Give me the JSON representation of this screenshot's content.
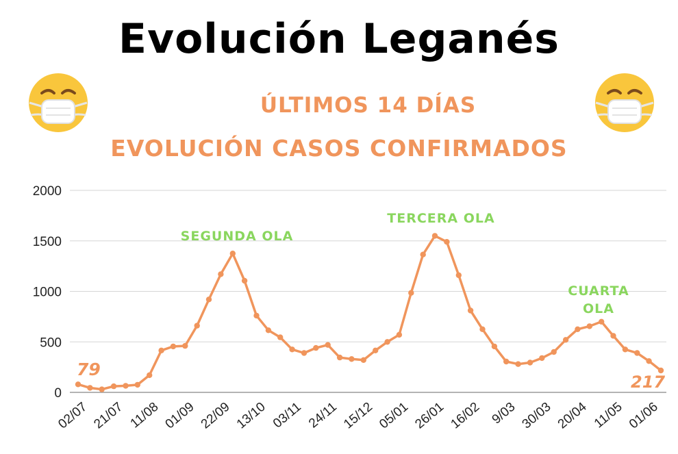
{
  "title": "Evolución Leganés",
  "subtitle_1": "ÚLTIMOS 14 DÍAS",
  "subtitle_2": "EVOLUCIÓN CASOS CONFIRMADOS",
  "icons": {
    "left": "face-with-medical-mask-icon",
    "right": "face-with-medical-mask-icon"
  },
  "colors": {
    "title": "#000000",
    "subtitle": "#f0955c",
    "line": "#f0955c",
    "annotation": "#8ad65e",
    "emoji_face": "#f9c63c",
    "mask": "#ffffff"
  },
  "chart_data": {
    "type": "line",
    "ylim": [
      0,
      2000
    ],
    "yticks": [
      "0",
      "500",
      "1000",
      "1500",
      "2000"
    ],
    "grid": true,
    "xtick_labels": [
      "02/07",
      "21/07",
      "11/08",
      "01/09",
      "22/09",
      "13/10",
      "03/11",
      "24/11",
      "15/12",
      "05/01",
      "26/01",
      "16/02",
      "9/03",
      "30/03",
      "20/04",
      "11/05",
      "01/06"
    ],
    "series": [
      {
        "values": [
          79,
          45,
          30,
          60,
          65,
          75,
          170,
          415,
          455,
          460,
          660,
          920,
          1170,
          1375,
          1105,
          760,
          615,
          545,
          425,
          390,
          440,
          470,
          345,
          330,
          320,
          415,
          500,
          570,
          985,
          1365,
          1550,
          1490,
          1160,
          810,
          625,
          455,
          305,
          280,
          295,
          340,
          400,
          520,
          625,
          655,
          700,
          560,
          425,
          390,
          310,
          217
        ]
      }
    ],
    "data_labels": {
      "first": "79",
      "last": "217"
    },
    "annotations": [
      {
        "lines": [
          "SEGUNDA OLA"
        ]
      },
      {
        "lines": [
          "TERCERA OLA"
        ]
      },
      {
        "lines": [
          "CUARTA",
          "OLA"
        ]
      }
    ]
  }
}
